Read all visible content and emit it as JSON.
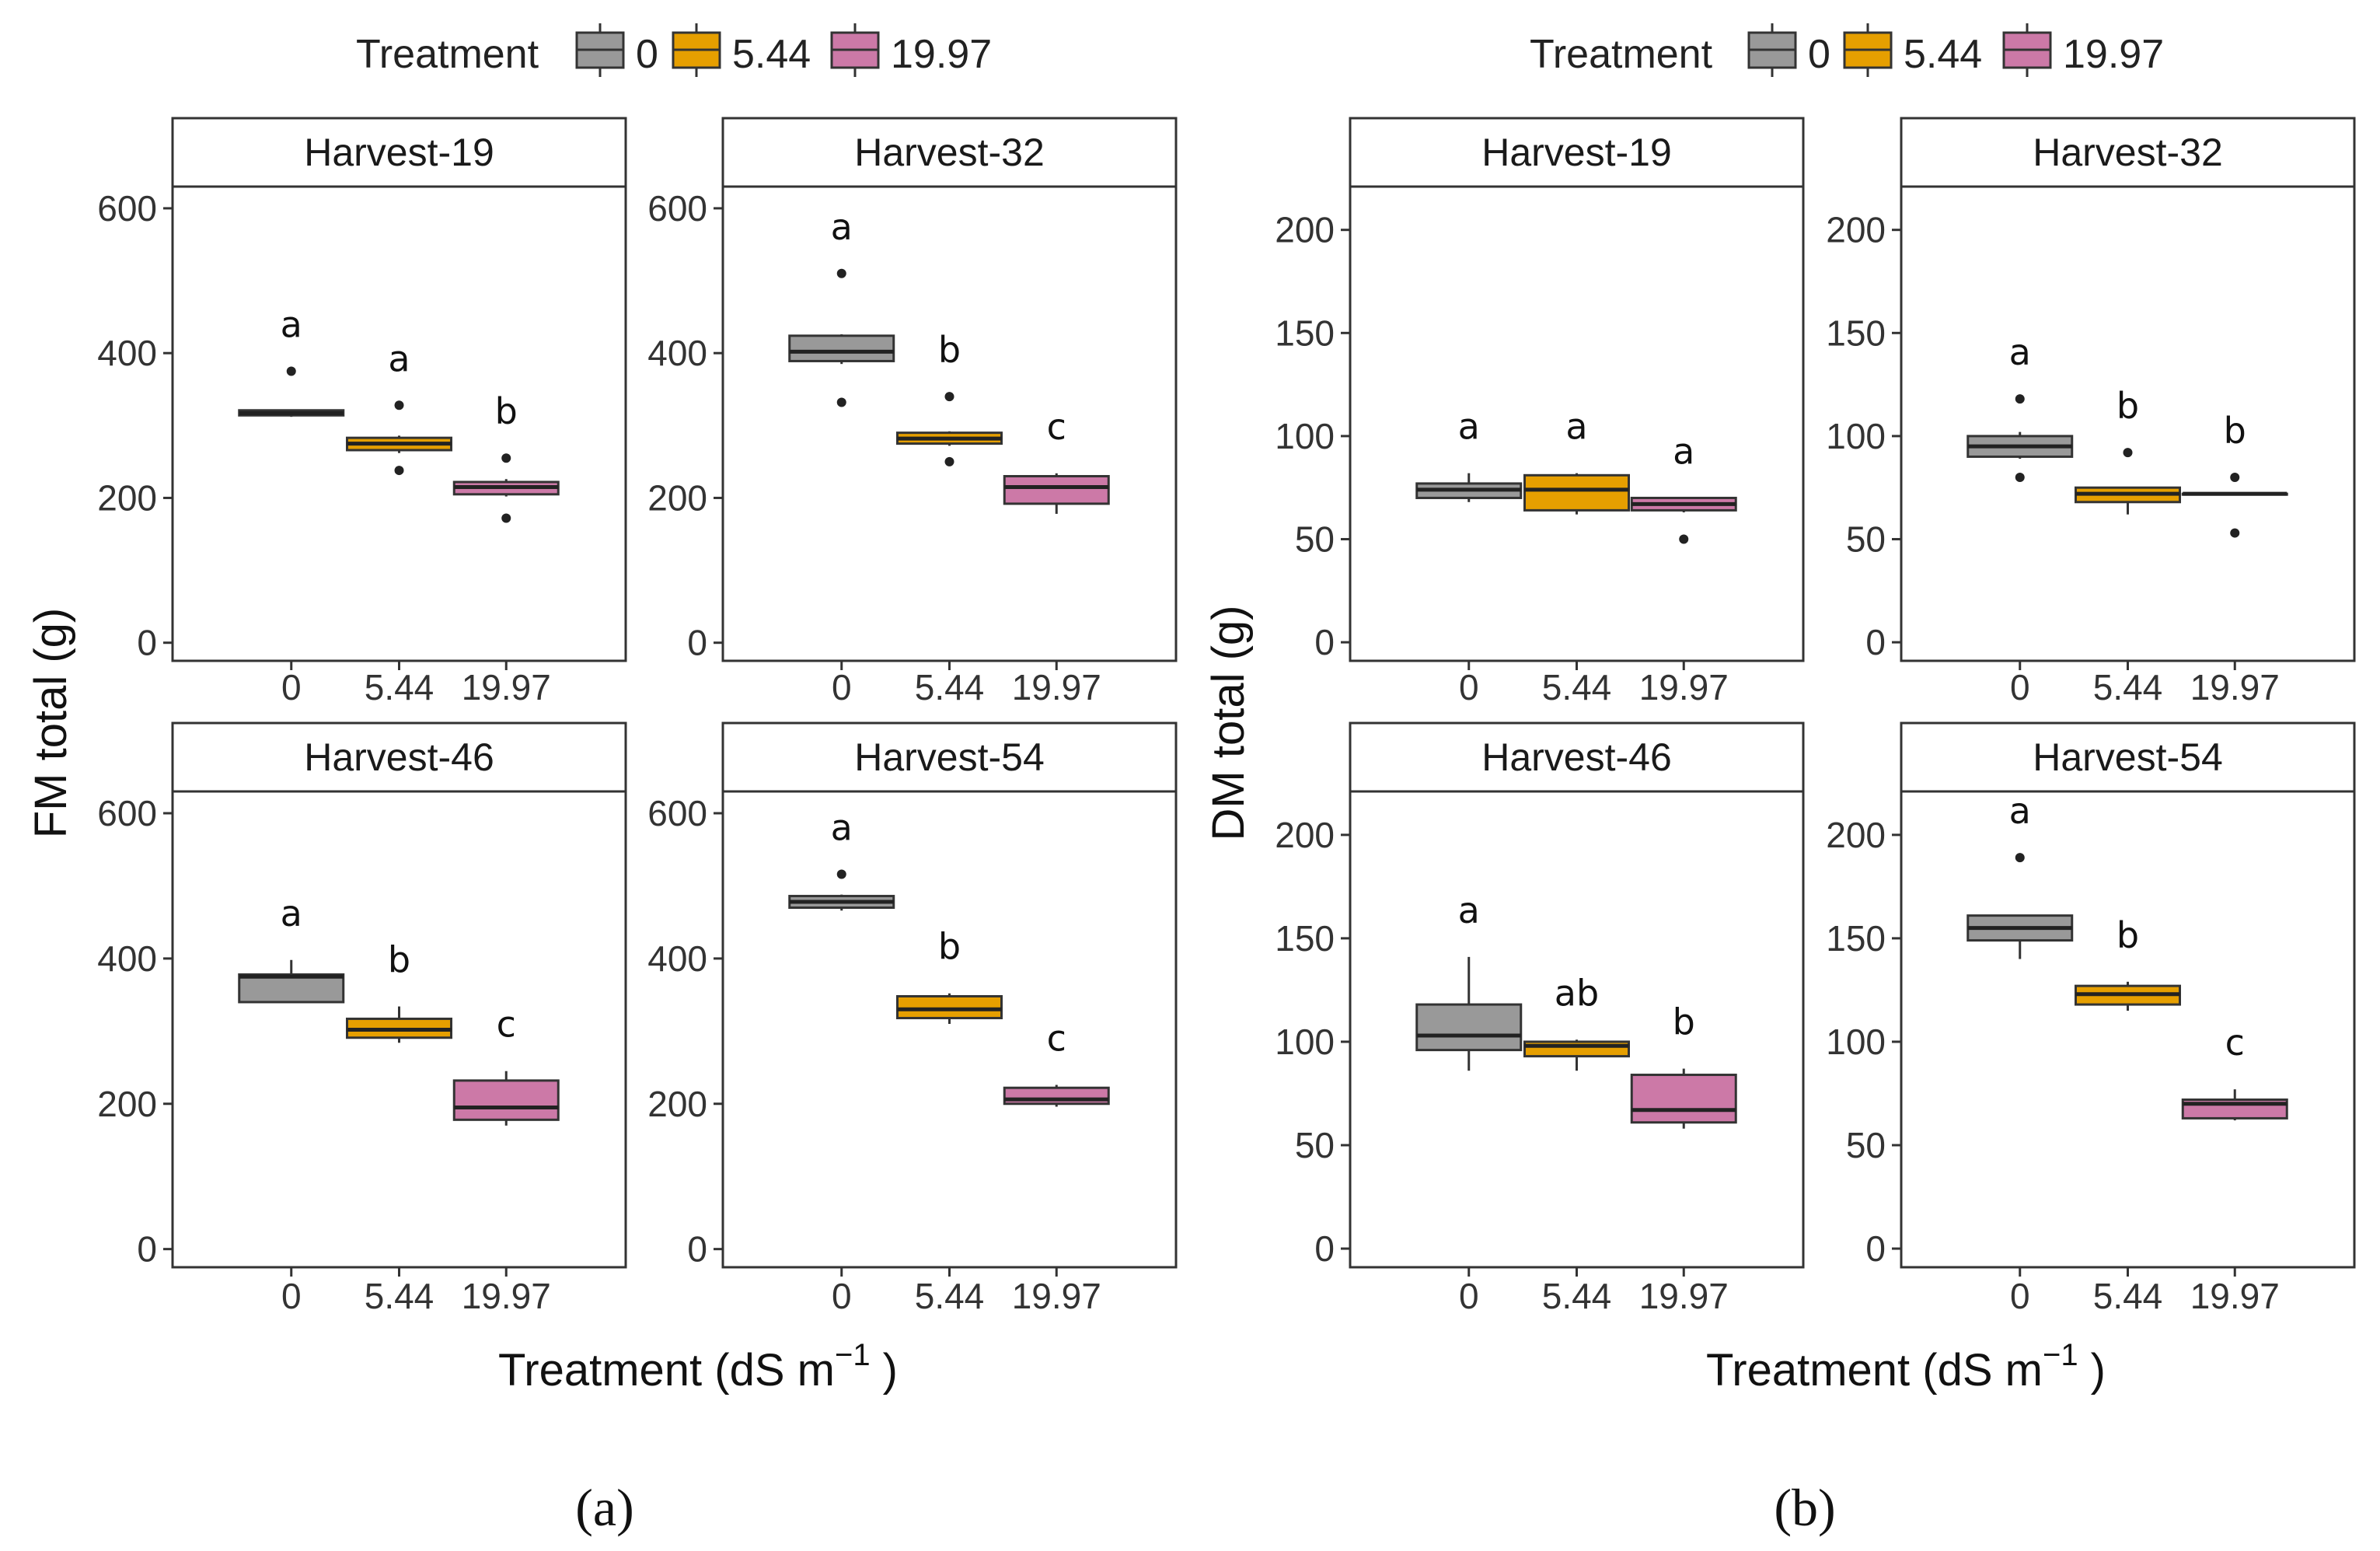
{
  "figure": {
    "captions": [
      "(a)",
      "(b)"
    ],
    "treatment_colors": {
      "0": "#999999",
      "5.44": "#E69F00",
      "19.97": "#CC79A7"
    }
  },
  "legend": {
    "title": "Treatment",
    "entries": [
      "0",
      "5.44",
      "19.97"
    ]
  },
  "chart_data": [
    {
      "type": "box",
      "panel": "a",
      "ylabel": "FM total (g)",
      "xlabel": "Treatment (dS m",
      "xlabel_sup": "−1",
      "xlabel_end": " )",
      "categories": [
        "0",
        "5.44",
        "19.97"
      ],
      "ylim": [
        -25,
        630
      ],
      "yticks": [
        0,
        200,
        400,
        600
      ],
      "facets": [
        {
          "title": "Harvest-19",
          "boxes": [
            {
              "category": "0",
              "whisker_low": 312,
              "q1": 314,
              "median": 317,
              "q3": 321,
              "whisker_high": 322,
              "outliers": [
                375
              ],
              "letter": "a"
            },
            {
              "category": "5.44",
              "whisker_low": 262,
              "q1": 266,
              "median": 275,
              "q3": 283,
              "whisker_high": 286,
              "outliers": [
                328,
                238
              ],
              "letter": "a"
            },
            {
              "category": "19.97",
              "whisker_low": 202,
              "q1": 205,
              "median": 215,
              "q3": 222,
              "whisker_high": 226,
              "outliers": [
                255,
                172
              ],
              "letter": "b"
            }
          ]
        },
        {
          "title": "Harvest-32",
          "boxes": [
            {
              "category": "0",
              "whisker_low": 385,
              "q1": 389,
              "median": 402,
              "q3": 424,
              "whisker_high": 426,
              "outliers": [
                510,
                332
              ],
              "letter": "a"
            },
            {
              "category": "5.44",
              "whisker_low": 272,
              "q1": 275,
              "median": 282,
              "q3": 290,
              "whisker_high": 292,
              "outliers": [
                340,
                250
              ],
              "letter": "b"
            },
            {
              "category": "19.97",
              "whisker_low": 178,
              "q1": 192,
              "median": 215,
              "q3": 230,
              "whisker_high": 234,
              "outliers": [],
              "letter": "c"
            }
          ]
        },
        {
          "title": "Harvest-46",
          "boxes": [
            {
              "category": "0",
              "whisker_low": 340,
              "q1": 340,
              "median": 375,
              "q3": 378,
              "whisker_high": 398,
              "outliers": [],
              "letter": "a"
            },
            {
              "category": "5.44",
              "whisker_low": 284,
              "q1": 291,
              "median": 302,
              "q3": 317,
              "whisker_high": 334,
              "outliers": [],
              "letter": "b"
            },
            {
              "category": "19.97",
              "whisker_low": 170,
              "q1": 178,
              "median": 195,
              "q3": 232,
              "whisker_high": 245,
              "outliers": [],
              "letter": "c"
            }
          ]
        },
        {
          "title": "Harvest-54",
          "boxes": [
            {
              "category": "0",
              "whisker_low": 466,
              "q1": 470,
              "median": 478,
              "q3": 486,
              "whisker_high": 488,
              "outliers": [
                516
              ],
              "letter": "a"
            },
            {
              "category": "5.44",
              "whisker_low": 310,
              "q1": 318,
              "median": 330,
              "q3": 348,
              "whisker_high": 352,
              "outliers": [],
              "letter": "b"
            },
            {
              "category": "19.97",
              "whisker_low": 196,
              "q1": 200,
              "median": 206,
              "q3": 222,
              "whisker_high": 226,
              "outliers": [],
              "letter": "c"
            }
          ]
        }
      ]
    },
    {
      "type": "box",
      "panel": "b",
      "ylabel": "DM total (g)",
      "xlabel": "Treatment (dS m",
      "xlabel_sup": "−1",
      "xlabel_end": " )",
      "categories": [
        "0",
        "5.44",
        "19.97"
      ],
      "ylim": [
        -9,
        221
      ],
      "yticks": [
        0,
        50,
        100,
        150,
        200
      ],
      "facets": [
        {
          "title": "Harvest-19",
          "boxes": [
            {
              "category": "0",
              "whisker_low": 68,
              "q1": 70,
              "median": 74,
              "q3": 77,
              "whisker_high": 82,
              "outliers": [],
              "letter": "a"
            },
            {
              "category": "5.44",
              "whisker_low": 62,
              "q1": 64,
              "median": 74,
              "q3": 81,
              "whisker_high": 82,
              "outliers": [],
              "letter": "a"
            },
            {
              "category": "19.97",
              "whisker_low": 63,
              "q1": 64,
              "median": 67,
              "q3": 70,
              "whisker_high": 70,
              "outliers": [
                50
              ],
              "letter": "a"
            }
          ]
        },
        {
          "title": "Harvest-32",
          "boxes": [
            {
              "category": "0",
              "whisker_low": 89,
              "q1": 90,
              "median": 95,
              "q3": 100,
              "whisker_high": 102,
              "outliers": [
                118,
                80
              ],
              "letter": "a"
            },
            {
              "category": "5.44",
              "whisker_low": 62,
              "q1": 68,
              "median": 72,
              "q3": 75,
              "whisker_high": 75,
              "outliers": [
                92
              ],
              "letter": "b"
            },
            {
              "category": "19.97",
              "whisker_low": 72,
              "q1": 72,
              "median": 72,
              "q3": 72,
              "whisker_high": 72,
              "outliers": [
                80,
                53
              ],
              "letter": "b"
            }
          ]
        },
        {
          "title": "Harvest-46",
          "boxes": [
            {
              "category": "0",
              "whisker_low": 86,
              "q1": 96,
              "median": 103,
              "q3": 118,
              "whisker_high": 141,
              "outliers": [],
              "letter": "a"
            },
            {
              "category": "5.44",
              "whisker_low": 86,
              "q1": 93,
              "median": 98,
              "q3": 100,
              "whisker_high": 101,
              "outliers": [],
              "letter": "ab"
            },
            {
              "category": "19.97",
              "whisker_low": 58,
              "q1": 61,
              "median": 67,
              "q3": 84,
              "whisker_high": 87,
              "outliers": [],
              "letter": "b"
            }
          ]
        },
        {
          "title": "Harvest-54",
          "boxes": [
            {
              "category": "0",
              "whisker_low": 140,
              "q1": 149,
              "median": 155,
              "q3": 161,
              "whisker_high": 161,
              "outliers": [
                189
              ],
              "letter": "a"
            },
            {
              "category": "5.44",
              "whisker_low": 115,
              "q1": 118,
              "median": 123,
              "q3": 127,
              "whisker_high": 129,
              "outliers": [],
              "letter": "b"
            },
            {
              "category": "19.97",
              "whisker_low": 62,
              "q1": 63,
              "median": 70,
              "q3": 72,
              "whisker_high": 77,
              "outliers": [],
              "letter": "c"
            }
          ]
        }
      ]
    }
  ]
}
